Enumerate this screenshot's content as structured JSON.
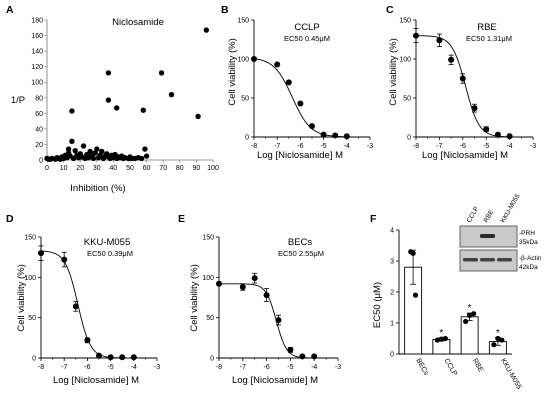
{
  "panel_letters": [
    "A",
    "B",
    "C",
    "D",
    "E",
    "F"
  ],
  "blot": {
    "lanes": [
      "CCLP",
      "RBE",
      "KKU-M055"
    ],
    "bands": [
      {
        "name": "-PRH",
        "size": "35kDa"
      },
      {
        "name": "-β-Actin",
        "size": "42kDa"
      }
    ],
    "colors": {
      "membrane": "#c9c9c9",
      "band": "#2a2a2a"
    }
  },
  "chart_data": [
    {
      "type": "scatter",
      "title": "Niclosamide",
      "xlabel": "Inhibition (%)",
      "ylabel": "1/P",
      "xlim": [
        0,
        100
      ],
      "ylim": [
        0,
        180
      ],
      "xticks": [
        0,
        10,
        20,
        30,
        40,
        50,
        60,
        70,
        80,
        90,
        100
      ],
      "yticks": [
        0,
        20,
        40,
        60,
        80,
        100,
        120,
        140,
        160,
        180
      ],
      "points": [
        [
          96,
          167
        ],
        [
          37,
          112
        ],
        [
          69,
          112
        ],
        [
          75,
          84
        ],
        [
          37,
          77
        ],
        [
          42,
          67
        ],
        [
          58,
          64
        ],
        [
          91,
          56
        ],
        [
          15,
          63
        ],
        [
          0,
          2
        ],
        [
          1,
          1
        ],
        [
          2,
          1
        ],
        [
          3,
          2
        ],
        [
          5,
          1
        ],
        [
          6,
          3
        ],
        [
          7,
          2
        ],
        [
          8,
          1
        ],
        [
          9,
          4
        ],
        [
          10,
          2
        ],
        [
          11,
          6
        ],
        [
          12,
          3
        ],
        [
          13,
          9
        ],
        [
          13,
          14
        ],
        [
          14,
          5
        ],
        [
          15,
          24
        ],
        [
          16,
          2
        ],
        [
          17,
          12
        ],
        [
          18,
          6
        ],
        [
          19,
          3
        ],
        [
          20,
          8
        ],
        [
          21,
          4
        ],
        [
          22,
          18
        ],
        [
          23,
          2
        ],
        [
          24,
          7
        ],
        [
          25,
          3
        ],
        [
          26,
          11
        ],
        [
          27,
          5
        ],
        [
          28,
          2
        ],
        [
          29,
          9
        ],
        [
          30,
          14
        ],
        [
          31,
          3
        ],
        [
          32,
          6
        ],
        [
          33,
          11
        ],
        [
          34,
          2
        ],
        [
          35,
          5
        ],
        [
          36,
          8
        ],
        [
          37,
          4
        ],
        [
          38,
          2
        ],
        [
          39,
          6
        ],
        [
          40,
          3
        ],
        [
          41,
          7
        ],
        [
          42,
          2
        ],
        [
          43,
          4
        ],
        [
          44,
          3
        ],
        [
          45,
          5
        ],
        [
          46,
          2
        ],
        [
          47,
          3
        ],
        [
          49,
          2
        ],
        [
          50,
          4
        ],
        [
          51,
          2
        ],
        [
          53,
          2
        ],
        [
          55,
          3
        ],
        [
          57,
          2
        ],
        [
          59,
          14
        ],
        [
          60,
          5
        ]
      ]
    },
    {
      "type": "line",
      "title": "CCLP",
      "annotation": "EC50 0.45μM",
      "xlabel": "Log [Niclosamide] M",
      "ylabel": "Cell viability (%)",
      "xlim": [
        -8,
        -3
      ],
      "ylim": [
        0,
        150
      ],
      "xticks": [
        -8,
        -7,
        -6,
        -5,
        -4,
        -3
      ],
      "yticks": [
        0,
        50,
        100,
        150
      ],
      "log_ec50": -6.35,
      "hill": 1.1,
      "top": 102,
      "bottom": 0,
      "points": [
        {
          "x": -8,
          "y": 100,
          "err": 0
        },
        {
          "x": -7,
          "y": 93,
          "err": 0
        },
        {
          "x": -6.5,
          "y": 70,
          "err": 0
        },
        {
          "x": -6,
          "y": 43,
          "err": 0
        },
        {
          "x": -5.5,
          "y": 14,
          "err": 0
        },
        {
          "x": -5,
          "y": 3,
          "err": 0
        },
        {
          "x": -4.5,
          "y": 2,
          "err": 0
        },
        {
          "x": -4,
          "y": 1,
          "err": 0
        }
      ]
    },
    {
      "type": "line",
      "title": "RBE",
      "annotation": "EC50 1.31μM",
      "xlabel": "Log [Niclosamide] M",
      "ylabel": "Cell viability (%)",
      "xlim": [
        -8,
        -3
      ],
      "ylim": [
        0,
        150
      ],
      "xticks": [
        -8,
        -7,
        -6,
        -5,
        -4,
        -3
      ],
      "yticks": [
        0,
        50,
        100,
        150
      ],
      "log_ec50": -5.88,
      "hill": 1.5,
      "top": 130,
      "bottom": 0,
      "points": [
        {
          "x": -8,
          "y": 130,
          "err": 9
        },
        {
          "x": -7,
          "y": 124,
          "err": 8
        },
        {
          "x": -6.5,
          "y": 99,
          "err": 6
        },
        {
          "x": -6,
          "y": 75,
          "err": 6
        },
        {
          "x": -5.5,
          "y": 37,
          "err": 5
        },
        {
          "x": -5,
          "y": 10,
          "err": 3
        },
        {
          "x": -4.5,
          "y": 3,
          "err": 1
        },
        {
          "x": -4,
          "y": 1,
          "err": 1
        }
      ]
    },
    {
      "type": "line",
      "title": "KKU-M055",
      "annotation": "EC50 0.39μM",
      "xlabel": "Log [Niclosamide] M",
      "ylabel": "Cell viability (%)",
      "xlim": [
        -8,
        -3
      ],
      "ylim": [
        0,
        150
      ],
      "xticks": [
        -8,
        -7,
        -6,
        -5,
        -4,
        -3
      ],
      "yticks": [
        0,
        50,
        100,
        150
      ],
      "log_ec50": -6.41,
      "hill": 1.6,
      "top": 133,
      "bottom": 0,
      "points": [
        {
          "x": -8,
          "y": 130,
          "err": 9
        },
        {
          "x": -7,
          "y": 122,
          "err": 9
        },
        {
          "x": -6.5,
          "y": 64,
          "err": 6
        },
        {
          "x": -6,
          "y": 22,
          "err": 3
        },
        {
          "x": -5.5,
          "y": 3,
          "err": 1
        },
        {
          "x": -5,
          "y": 1,
          "err": 1
        },
        {
          "x": -4.5,
          "y": 1,
          "err": 0
        },
        {
          "x": -4,
          "y": 1,
          "err": 0
        }
      ]
    },
    {
      "type": "line",
      "title": "BECs",
      "annotation": "EC50 2.55μM",
      "xlabel": "Log [Niclosamide] M",
      "ylabel": "Cell viability (%)",
      "xlim": [
        -8,
        -3
      ],
      "ylim": [
        0,
        150
      ],
      "xticks": [
        -8,
        -7,
        -6,
        -5,
        -4,
        -3
      ],
      "yticks": [
        0,
        50,
        100,
        150
      ],
      "log_ec50": -5.59,
      "hill": 2.0,
      "top": 92,
      "bottom": 0,
      "points": [
        {
          "x": -8,
          "y": 92,
          "err": 0
        },
        {
          "x": -7,
          "y": 88,
          "err": 4
        },
        {
          "x": -6.5,
          "y": 99,
          "err": 6
        },
        {
          "x": -6,
          "y": 78,
          "err": 8
        },
        {
          "x": -5.5,
          "y": 47,
          "err": 6
        },
        {
          "x": -5,
          "y": 10,
          "err": 3
        },
        {
          "x": -4.5,
          "y": 2,
          "err": 1
        },
        {
          "x": -4,
          "y": 2,
          "err": 1
        }
      ]
    },
    {
      "type": "bar",
      "xlabel": "",
      "ylabel": "EC50 (μM)",
      "ylim": [
        0,
        4
      ],
      "yticks": [
        0,
        1,
        2,
        3,
        4
      ],
      "categories": [
        "BECs",
        "CCLP",
        "RBE",
        "KKU-M055"
      ],
      "values": [
        2.8,
        0.47,
        1.2,
        0.4
      ],
      "errors": [
        0.55,
        0.05,
        0.12,
        0.12
      ],
      "significance": [
        "",
        "*",
        "*",
        "*"
      ],
      "points": [
        [
          3.3,
          3.25,
          1.9
        ],
        [
          0.45,
          0.48,
          0.5
        ],
        [
          1.05,
          1.25,
          1.3
        ],
        [
          0.3,
          0.5,
          0.45
        ]
      ]
    }
  ]
}
